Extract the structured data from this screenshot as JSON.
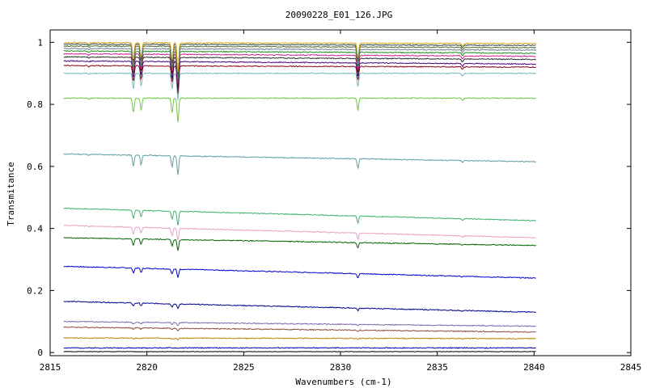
{
  "chart_data": {
    "type": "line",
    "title": "20090228_E01_126.JPG",
    "xlabel": "Wavenumbers (cm-1)",
    "ylabel": "Transmitance",
    "xlim": [
      2815,
      2845
    ],
    "ylim": [
      -0.01,
      1.04
    ],
    "xticks": [
      "2815",
      "2820",
      "2825",
      "2830",
      "2835",
      "2840",
      "2845"
    ],
    "yticks": [
      "0",
      "0.2",
      "0.4",
      "0.6",
      "0.8",
      "1"
    ],
    "x_range_of_data": [
      2815.7,
      2840.1
    ],
    "absorption_lines": [
      2817.0,
      2819.3,
      2819.7,
      2821.3,
      2821.6,
      2830.9,
      2836.3
    ],
    "series": [
      {
        "color": "#000000",
        "values": {
          "start": 0.003,
          "end": 0.003
        }
      },
      {
        "color": "#0000aa",
        "values": {
          "start": 0.015,
          "end": 0.015
        }
      },
      {
        "color": "#b8860b",
        "values": {
          "start": 0.047,
          "end": 0.045
        }
      },
      {
        "color": "#8b4c39",
        "values": {
          "start": 0.082,
          "end": 0.066
        }
      },
      {
        "color": "#7b68aa",
        "values": {
          "start": 0.1,
          "end": 0.085
        }
      },
      {
        "color": "#00008b",
        "values": {
          "start": 0.165,
          "end": 0.13
        }
      },
      {
        "color": "#0000cd",
        "values": {
          "start": 0.278,
          "end": 0.24
        }
      },
      {
        "color": "#006400",
        "values": {
          "start": 0.37,
          "end": 0.345
        }
      },
      {
        "color": "#e8a0c8",
        "values": {
          "start": 0.41,
          "end": 0.37
        }
      },
      {
        "color": "#3cb371",
        "values": {
          "start": 0.465,
          "end": 0.425
        }
      },
      {
        "color": "#5f9ea0",
        "values": {
          "start": 0.64,
          "end": 0.615
        }
      },
      {
        "color": "#6ec83c",
        "values": {
          "start": 0.82,
          "end": 0.82
        }
      },
      {
        "color": "#76b8c0",
        "values": {
          "start": 0.9,
          "end": 0.9
        }
      },
      {
        "color": "#8b0a1a",
        "values": {
          "start": 0.925,
          "end": 0.92
        }
      },
      {
        "color": "#4b0082",
        "values": {
          "start": 0.94,
          "end": 0.93
        }
      },
      {
        "color": "#2e2e2e",
        "values": {
          "start": 0.953,
          "end": 0.945
        }
      },
      {
        "color": "#d02090",
        "values": {
          "start": 0.963,
          "end": 0.955
        }
      },
      {
        "color": "#228b22",
        "values": {
          "start": 0.972,
          "end": 0.965
        }
      },
      {
        "color": "#708090",
        "values": {
          "start": 0.98,
          "end": 0.975
        }
      },
      {
        "color": "#556b2f",
        "values": {
          "start": 0.988,
          "end": 0.983
        }
      },
      {
        "color": "#2f4f4f",
        "values": {
          "start": 0.994,
          "end": 0.99
        }
      },
      {
        "color": "#daa520",
        "values": {
          "start": 0.999,
          "end": 0.996
        }
      }
    ],
    "grid": false,
    "legend": "none"
  }
}
